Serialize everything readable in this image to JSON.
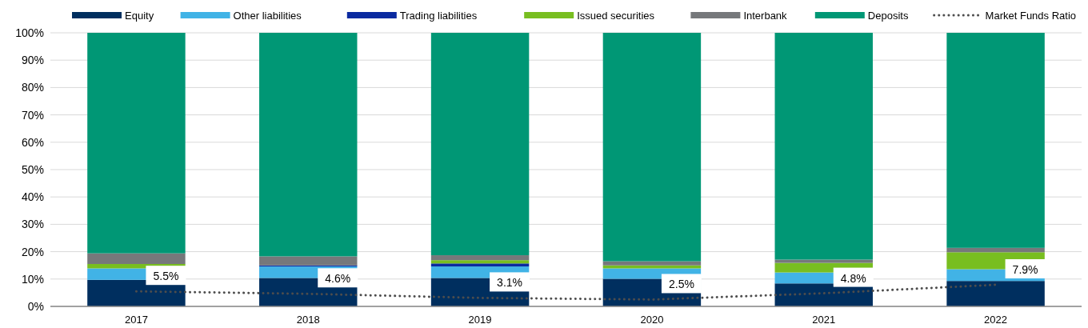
{
  "chart_data": {
    "type": "bar",
    "stacked": true,
    "categories": [
      "2017",
      "2018",
      "2019",
      "2020",
      "2021",
      "2022"
    ],
    "series": [
      {
        "name": "Equity",
        "color": "#002f5f",
        "values": [
          9.7,
          10.4,
          10.4,
          10.1,
          8.4,
          9.3
        ]
      },
      {
        "name": "Other liabilities",
        "color": "#41b3e6",
        "values": [
          4.2,
          4.2,
          4.2,
          3.8,
          4.0,
          4.3
        ]
      },
      {
        "name": "Trading liabilities",
        "color": "#0a2aa0",
        "values": [
          0,
          0.4,
          1.1,
          0,
          0,
          0
        ]
      },
      {
        "name": "Issued securities",
        "color": "#78be20",
        "values": [
          1.6,
          0,
          1.2,
          1.1,
          3.5,
          6.2
        ]
      },
      {
        "name": "Interbank",
        "color": "#76787b",
        "values": [
          3.9,
          3.3,
          1.8,
          1.5,
          1.2,
          1.6
        ]
      },
      {
        "name": "Deposits",
        "color": "#009775",
        "values": [
          80.6,
          81.7,
          81.3,
          83.5,
          82.9,
          78.6
        ]
      },
      {
        "name": "Market Funds Ratio",
        "type": "line",
        "color": "#4d4d4d",
        "line_style": "dotted",
        "values": [
          5.5,
          4.6,
          3.1,
          2.5,
          4.8,
          7.9
        ],
        "value_labels": [
          "5.5%",
          "4.6%",
          "3.1%",
          "2.5%",
          "4.8%",
          "7.9%"
        ]
      }
    ],
    "ylim": [
      0,
      100
    ],
    "yticks": [
      {
        "value": 0,
        "label": "0%"
      },
      {
        "value": 10,
        "label": "10%"
      },
      {
        "value": 20,
        "label": "20%"
      },
      {
        "value": 30,
        "label": "30%"
      },
      {
        "value": 40,
        "label": "40%"
      },
      {
        "value": 50,
        "label": "50%"
      },
      {
        "value": 60,
        "label": "60%"
      },
      {
        "value": 70,
        "label": "70%"
      },
      {
        "value": 80,
        "label": "80%"
      },
      {
        "value": 90,
        "label": "90%"
      },
      {
        "value": 100,
        "label": "100%"
      }
    ],
    "grid": "y",
    "legend": "top"
  }
}
